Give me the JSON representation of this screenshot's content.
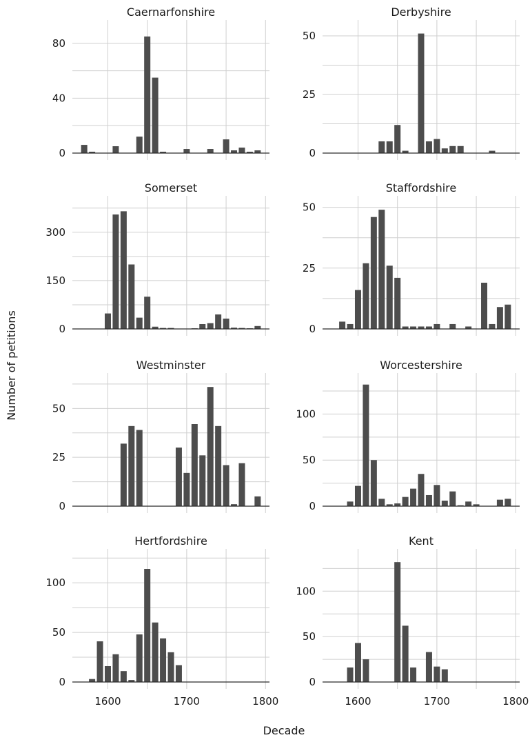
{
  "chart_data": {
    "type": "bar",
    "xlabel": "Decade",
    "ylabel": "Number of petitions",
    "xlim": [
      1555,
      1805
    ],
    "x_ticks": [
      1600,
      1700,
      1800
    ],
    "minor_x": [
      1650,
      1750
    ],
    "bar_color": "#4d4d4d",
    "grid": true,
    "panels": [
      {
        "title": "Caernarfonshire",
        "ylim": [
          0,
          94
        ],
        "y_ticks": [
          0,
          40,
          80
        ],
        "x": [
          1570,
          1580,
          1610,
          1640,
          1650,
          1660,
          1670,
          1700,
          1730,
          1750,
          1760,
          1770,
          1780,
          1790
        ],
        "values": [
          6,
          1,
          5,
          12,
          85,
          55,
          1,
          3,
          3,
          10,
          2,
          4,
          1,
          2
        ]
      },
      {
        "title": "Derbyshire",
        "ylim": [
          0,
          55
        ],
        "y_ticks": [
          0,
          25,
          50
        ],
        "x": [
          1630,
          1640,
          1650,
          1660,
          1680,
          1690,
          1700,
          1710,
          1720,
          1730,
          1770
        ],
        "values": [
          5,
          5,
          12,
          1,
          51,
          5,
          6,
          2,
          3,
          3,
          1
        ]
      },
      {
        "title": "Somerset",
        "ylim": [
          0,
          400
        ],
        "y_ticks": [
          0,
          150,
          300
        ],
        "x": [
          1600,
          1610,
          1620,
          1630,
          1640,
          1650,
          1660,
          1670,
          1680,
          1710,
          1720,
          1730,
          1740,
          1750,
          1760,
          1770,
          1780,
          1790
        ],
        "values": [
          48,
          355,
          365,
          200,
          35,
          100,
          7,
          3,
          3,
          2,
          15,
          18,
          45,
          32,
          4,
          3,
          2,
          9
        ]
      },
      {
        "title": "Staffordshire",
        "ylim": [
          0,
          53
        ],
        "y_ticks": [
          0,
          25,
          50
        ],
        "x": [
          1580,
          1590,
          1600,
          1610,
          1620,
          1630,
          1640,
          1650,
          1660,
          1670,
          1680,
          1690,
          1700,
          1720,
          1740,
          1750,
          1760,
          1770,
          1780,
          1790
        ],
        "values": [
          3,
          2,
          16,
          27,
          46,
          49,
          26,
          21,
          1,
          1,
          1,
          1,
          2,
          2,
          1,
          0,
          19,
          2,
          9,
          10
        ]
      },
      {
        "title": "Westminster",
        "ylim": [
          0,
          66
        ],
        "y_ticks": [
          0,
          25,
          50
        ],
        "x": [
          1620,
          1630,
          1640,
          1690,
          1700,
          1710,
          1720,
          1730,
          1740,
          1750,
          1760,
          1770,
          1790
        ],
        "values": [
          32,
          41,
          39,
          30,
          17,
          42,
          26,
          61,
          41,
          21,
          1,
          22,
          5
        ]
      },
      {
        "title": "Worcestershire",
        "ylim": [
          0,
          140
        ],
        "y_ticks": [
          0,
          50,
          100
        ],
        "x": [
          1590,
          1600,
          1610,
          1620,
          1630,
          1640,
          1650,
          1660,
          1670,
          1680,
          1690,
          1700,
          1710,
          1720,
          1730,
          1740,
          1750,
          1780,
          1790
        ],
        "values": [
          5,
          22,
          132,
          50,
          8,
          2,
          3,
          10,
          19,
          35,
          12,
          23,
          6,
          16,
          1,
          5,
          2,
          7,
          8
        ]
      },
      {
        "title": "Hertfordshire",
        "ylim": [
          0,
          130
        ],
        "y_ticks": [
          0,
          50,
          100
        ],
        "x": [
          1580,
          1590,
          1600,
          1610,
          1620,
          1630,
          1640,
          1650,
          1660,
          1670,
          1680,
          1690
        ],
        "values": [
          3,
          41,
          16,
          28,
          11,
          2,
          48,
          114,
          60,
          44,
          30,
          17
        ]
      },
      {
        "title": "Kent",
        "ylim": [
          0,
          142
        ],
        "y_ticks": [
          0,
          50,
          100
        ],
        "x": [
          1590,
          1600,
          1610,
          1650,
          1660,
          1670,
          1690,
          1700,
          1710
        ],
        "values": [
          16,
          43,
          25,
          132,
          62,
          16,
          33,
          17,
          14
        ]
      }
    ]
  }
}
